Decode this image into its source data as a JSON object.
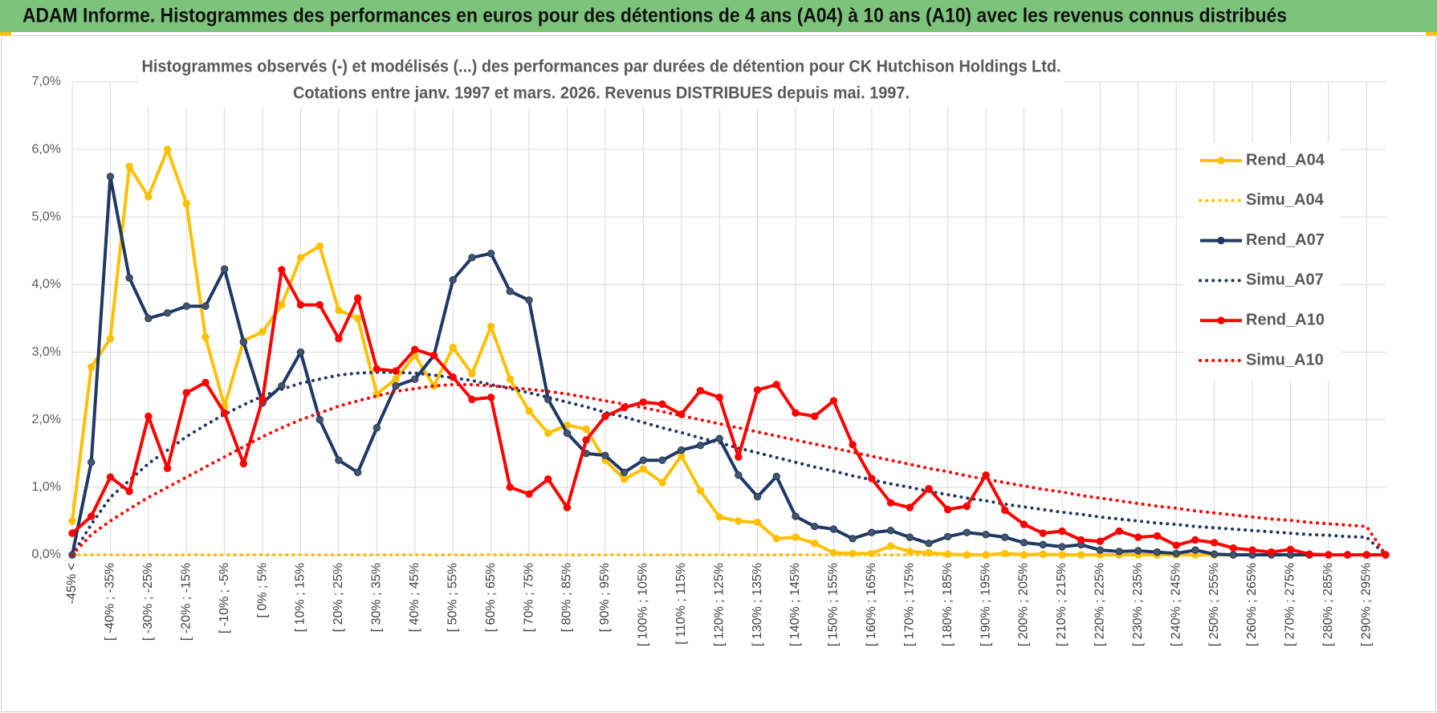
{
  "header": {
    "title": "ADAM Informe. Histogrammes des performances en euros pour des détentions de 4 ans (A04) à 10 ans (A10) avec les revenus connus distribués"
  },
  "chart_data": {
    "type": "line",
    "subtitle": [
      "Histogrammes observés (-) et modélisés (...) des performances par durées de détention pour CK Hutchison Holdings Ltd.",
      "Cotations entre janv. 1997 et mars. 2026. Revenus DISTRIBUES depuis mai. 1997."
    ],
    "categories": [
      "-45% <",
      null,
      "[ -40% ; -35%",
      null,
      "[ -30% ; -25%",
      null,
      "[ -20% ; -15%",
      null,
      "[ -10% ; -5%",
      null,
      "[ 0% ; 5%",
      null,
      "[ 10% ; 15%",
      null,
      "[ 20% ; 25%",
      null,
      "[ 30% ; 35%",
      null,
      "[ 40% ; 45%",
      null,
      "[ 50% ; 55%",
      null,
      "[ 60% ; 65%",
      null,
      "[ 70% ; 75%",
      null,
      "[ 80% ; 85%",
      null,
      "[ 90% ; 95%",
      null,
      "[ 100% ; 105%",
      null,
      "[ 110% ; 115%",
      null,
      "[ 120% ; 125%",
      null,
      "[ 130% ; 135%",
      null,
      "[ 140% ; 145%",
      null,
      "[ 150% ; 155%",
      null,
      "[ 160% ; 165%",
      null,
      "[ 170% ; 175%",
      null,
      "[ 180% ; 185%",
      null,
      "[ 190% ; 195%",
      null,
      "[ 200% ; 205%",
      null,
      "[ 210% ; 215%",
      null,
      "[ 220% ; 225%",
      null,
      "[ 230% ; 235%",
      null,
      "[ 240% ; 245%",
      null,
      "[ 250% ; 255%",
      null,
      "[ 260% ; 265%",
      null,
      "[ 270% ; 275%",
      null,
      "[ 280% ; 285%",
      null,
      "[ 290% ; 295%",
      null
    ],
    "ylim": [
      0,
      7
    ],
    "yticks": [
      {
        "value": 0,
        "label": "0,0%"
      },
      {
        "value": 1,
        "label": "1,0%"
      },
      {
        "value": 2,
        "label": "2,0%"
      },
      {
        "value": 3,
        "label": "3,0%"
      },
      {
        "value": 4,
        "label": "4,0%"
      },
      {
        "value": 5,
        "label": "5,0%"
      },
      {
        "value": 6,
        "label": "6,0%"
      },
      {
        "value": 7,
        "label": "7,0%"
      }
    ],
    "grid": true,
    "legend": "right",
    "series": [
      {
        "name": "Rend_A04",
        "color": "#ffc000",
        "line_style": "solid",
        "markers": true,
        "values": [
          0.5,
          2.78,
          3.2,
          5.75,
          5.3,
          6.0,
          5.2,
          3.22,
          2.2,
          3.17,
          3.3,
          3.7,
          4.4,
          4.57,
          3.62,
          3.5,
          2.38,
          2.6,
          2.95,
          2.5,
          3.07,
          2.68,
          3.38,
          2.6,
          2.13,
          1.8,
          1.92,
          1.86,
          1.4,
          1.12,
          1.27,
          1.07,
          1.47,
          0.95,
          0.56,
          0.5,
          0.48,
          0.24,
          0.26,
          0.17,
          0.03,
          0.02,
          0.02,
          0.13,
          0.05,
          0.03,
          0.01,
          0,
          0,
          0.02,
          0,
          0.01,
          0,
          0,
          0,
          0,
          0,
          0,
          0,
          0,
          0,
          0,
          0,
          0,
          0,
          0,
          0,
          0,
          0,
          0
        ]
      },
      {
        "name": "Simu_A04",
        "color": "#ffc000",
        "line_style": "dotted",
        "markers": false,
        "values": [
          0,
          0,
          0,
          0,
          0,
          0,
          0,
          0,
          0,
          0,
          0,
          0,
          0,
          0,
          0,
          0,
          0,
          0,
          0,
          0,
          0,
          0,
          0,
          0,
          0,
          0,
          0,
          0,
          0,
          0,
          0,
          0,
          0,
          0,
          0,
          0,
          0,
          0,
          0,
          0,
          0,
          0,
          0,
          0,
          0,
          0,
          0,
          0,
          0,
          0,
          0,
          0,
          0,
          0,
          0,
          0,
          0,
          0,
          0,
          0,
          0,
          0,
          0,
          0,
          0,
          0,
          0,
          0,
          0,
          0
        ]
      },
      {
        "name": "Rend_A07",
        "color": "#1f3864",
        "line_style": "solid",
        "markers": true,
        "values": [
          0,
          1.37,
          5.6,
          4.1,
          3.5,
          3.58,
          3.68,
          3.68,
          4.23,
          3.15,
          2.25,
          2.5,
          3.0,
          2.0,
          1.4,
          1.22,
          1.88,
          2.5,
          2.6,
          2.95,
          4.07,
          4.4,
          4.46,
          3.9,
          3.77,
          2.3,
          1.8,
          1.5,
          1.47,
          1.22,
          1.4,
          1.4,
          1.55,
          1.62,
          1.72,
          1.18,
          0.86,
          1.16,
          0.57,
          0.42,
          0.38,
          0.24,
          0.33,
          0.36,
          0.26,
          0.17,
          0.27,
          0.33,
          0.3,
          0.26,
          0.18,
          0.15,
          0.12,
          0.15,
          0.07,
          0.05,
          0.06,
          0.04,
          0.02,
          0.07,
          0.01,
          0,
          0,
          0,
          0,
          0,
          0,
          0,
          0,
          0
        ]
      },
      {
        "name": "Simu_A07",
        "color": "#1f3864",
        "line_style": "dotted",
        "markers": false,
        "values": [
          0,
          0.45,
          0.85,
          1.1,
          1.35,
          1.55,
          1.75,
          1.92,
          2.08,
          2.22,
          2.35,
          2.45,
          2.54,
          2.6,
          2.66,
          2.69,
          2.7,
          2.7,
          2.69,
          2.66,
          2.62,
          2.58,
          2.52,
          2.46,
          2.4,
          2.33,
          2.26,
          2.19,
          2.11,
          2.04,
          1.96,
          1.88,
          1.81,
          1.73,
          1.66,
          1.58,
          1.51,
          1.44,
          1.37,
          1.3,
          1.24,
          1.17,
          1.11,
          1.05,
          1.0,
          0.94,
          0.89,
          0.84,
          0.8,
          0.75,
          0.71,
          0.67,
          0.63,
          0.6,
          0.56,
          0.53,
          0.5,
          0.47,
          0.45,
          0.42,
          0.4,
          0.38,
          0.36,
          0.34,
          0.32,
          0.3,
          0.29,
          0.27,
          0.26,
          0
        ]
      },
      {
        "name": "Rend_A10",
        "color": "#ff0000",
        "line_style": "solid",
        "markers": true,
        "values": [
          0.32,
          0.57,
          1.15,
          0.94,
          2.05,
          1.28,
          2.4,
          2.55,
          2.1,
          1.35,
          2.3,
          4.22,
          3.7,
          3.7,
          3.2,
          3.8,
          2.75,
          2.72,
          3.04,
          2.95,
          2.63,
          2.3,
          2.33,
          1.0,
          0.9,
          1.12,
          0.7,
          1.7,
          2.05,
          2.18,
          2.26,
          2.23,
          2.08,
          2.43,
          2.33,
          1.45,
          2.44,
          2.52,
          2.1,
          2.05,
          2.28,
          1.63,
          1.13,
          0.77,
          0.7,
          0.98,
          0.67,
          0.72,
          1.18,
          0.66,
          0.45,
          0.32,
          0.35,
          0.22,
          0.2,
          0.35,
          0.26,
          0.28,
          0.14,
          0.22,
          0.18,
          0.1,
          0.07,
          0.04,
          0.08,
          0.01,
          0,
          0,
          0,
          0
        ]
      },
      {
        "name": "Simu_A10",
        "color": "#ff0000",
        "line_style": "dotted",
        "markers": false,
        "values": [
          0,
          0.3,
          0.5,
          0.68,
          0.85,
          1.0,
          1.15,
          1.3,
          1.45,
          1.6,
          1.75,
          1.88,
          2.0,
          2.1,
          2.2,
          2.28,
          2.35,
          2.42,
          2.46,
          2.5,
          2.52,
          2.52,
          2.5,
          2.48,
          2.45,
          2.42,
          2.38,
          2.33,
          2.28,
          2.23,
          2.18,
          2.12,
          2.06,
          2.0,
          1.94,
          1.88,
          1.82,
          1.76,
          1.7,
          1.64,
          1.58,
          1.52,
          1.46,
          1.4,
          1.34,
          1.28,
          1.23,
          1.17,
          1.12,
          1.07,
          1.02,
          0.97,
          0.93,
          0.88,
          0.84,
          0.8,
          0.76,
          0.72,
          0.69,
          0.65,
          0.62,
          0.59,
          0.56,
          0.53,
          0.51,
          0.48,
          0.46,
          0.44,
          0.42,
          0
        ]
      }
    ]
  }
}
